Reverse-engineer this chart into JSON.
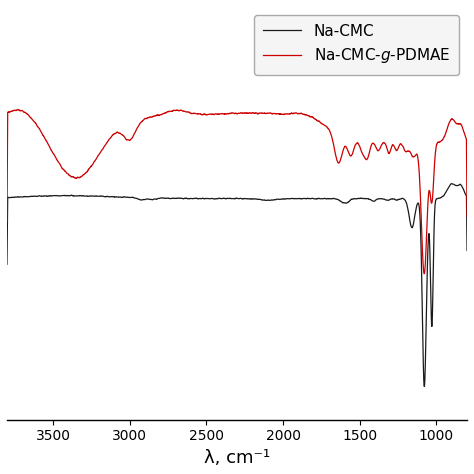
{
  "xlabel": "λ, cm⁻¹",
  "xlim": [
    3800,
    800
  ],
  "legend_labels": [
    "Na-CMC",
    "Na-CMC-$\\it{g}$-PDMAE"
  ],
  "black_color": "#1a1a1a",
  "red_color": "#cc0000",
  "xticks": [
    3500,
    3000,
    2500,
    2000,
    1500,
    1000
  ],
  "background_color": "#ffffff",
  "xlabel_fontsize": 13,
  "legend_fontsize": 11,
  "linewidth": 0.9
}
